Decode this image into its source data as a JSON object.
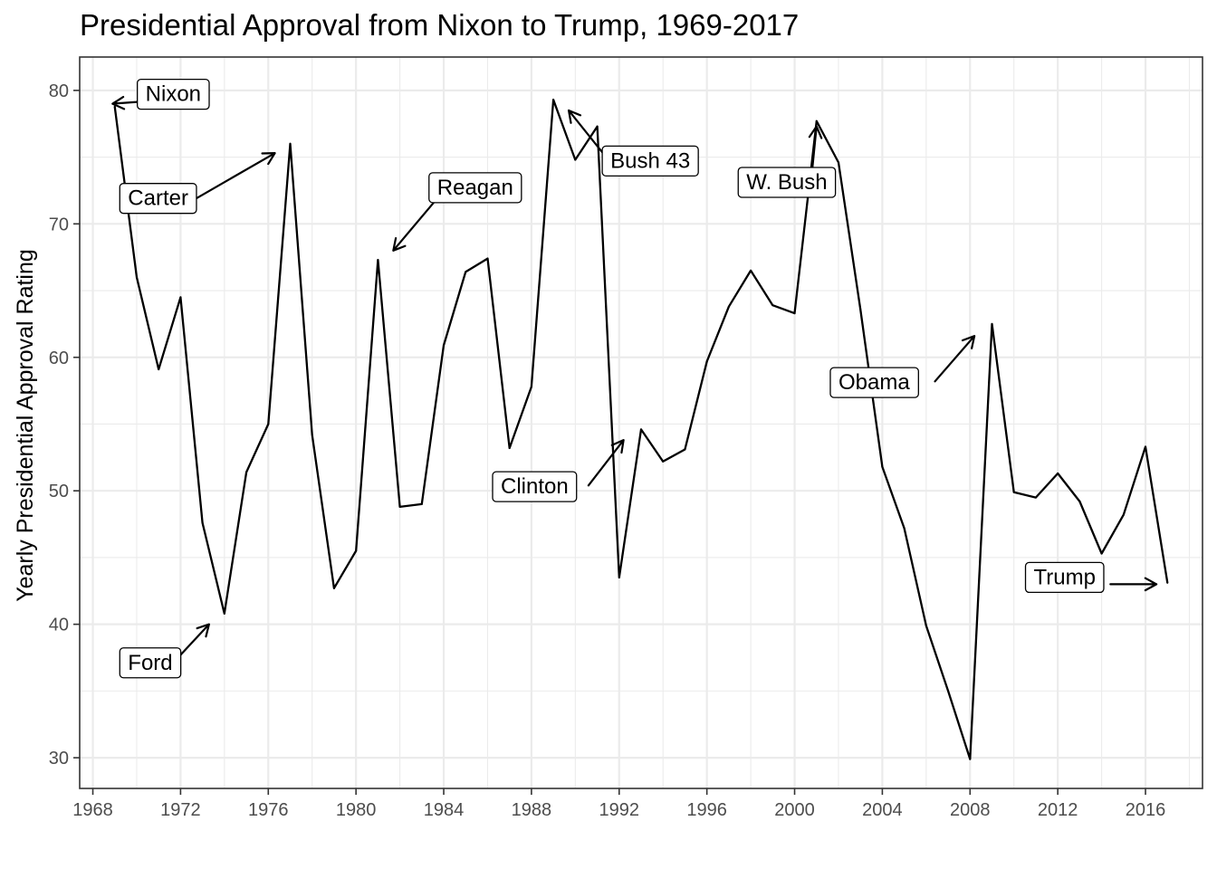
{
  "chart_data": {
    "type": "line",
    "title": "Presidential Approval from Nixon to Trump, 1969-2017",
    "xlabel": "",
    "ylabel": "Yearly Presidential Approval Rating",
    "xlim": [
      1967.4,
      2018.6
    ],
    "ylim": [
      27.7,
      82.5
    ],
    "x_ticks": [
      1968,
      1972,
      1976,
      1980,
      1984,
      1988,
      1992,
      1996,
      2000,
      2004,
      2008,
      2012,
      2016
    ],
    "y_ticks": [
      30,
      40,
      50,
      60,
      70,
      80
    ],
    "grid": true,
    "legend": "none",
    "x": [
      1969,
      1970,
      1971,
      1972,
      1973,
      1974,
      1975,
      1976,
      1977,
      1978,
      1979,
      1980,
      1981,
      1982,
      1983,
      1984,
      1985,
      1986,
      1987,
      1988,
      1989,
      1990,
      1991,
      1992,
      1993,
      1994,
      1995,
      1996,
      1997,
      1998,
      1999,
      2000,
      2001,
      2002,
      2003,
      2004,
      2005,
      2006,
      2007,
      2008,
      2009,
      2010,
      2011,
      2012,
      2013,
      2014,
      2015,
      2016,
      2017
    ],
    "y": [
      78.8,
      66.0,
      59.1,
      64.5,
      47.6,
      40.8,
      51.4,
      55.0,
      76.0,
      54.2,
      42.7,
      45.5,
      67.3,
      48.8,
      49.0,
      60.9,
      66.4,
      67.4,
      53.2,
      57.8,
      79.3,
      74.8,
      77.3,
      43.5,
      54.6,
      52.2,
      53.1,
      59.7,
      63.8,
      66.5,
      63.9,
      63.3,
      77.7,
      74.6,
      63.6,
      51.8,
      47.2,
      39.9,
      35.0,
      29.9,
      62.5,
      49.9,
      49.5,
      51.3,
      49.2,
      45.3,
      48.2,
      53.3,
      43.1
    ],
    "annotations": [
      {
        "label": "Nixon",
        "text_x": 1970.4,
        "text_y": 79.2,
        "arrow_from_x": 1970.6,
        "arrow_from_y": 79.2,
        "arrow_to_x": 1968.9,
        "arrow_to_y": 79.0
      },
      {
        "label": "Ford",
        "text_x": 1969.6,
        "text_y": 36.6,
        "arrow_from_x": 1971.6,
        "arrow_from_y": 37.0,
        "arrow_to_x": 1973.3,
        "arrow_to_y": 40.0
      },
      {
        "label": "Carter",
        "text_x": 1969.6,
        "text_y": 71.4,
        "arrow_from_x": 1972.6,
        "arrow_from_y": 71.8,
        "arrow_to_x": 1976.3,
        "arrow_to_y": 75.3
      },
      {
        "label": "Reagan",
        "text_x": 1983.7,
        "text_y": 72.2,
        "arrow_from_x": 1983.7,
        "arrow_from_y": 71.9,
        "arrow_to_x": 1981.7,
        "arrow_to_y": 68.0
      },
      {
        "label": "Bush 43",
        "text_x": 1991.6,
        "text_y": 74.2,
        "arrow_from_x": 1991.6,
        "arrow_from_y": 74.6,
        "arrow_to_x": 1989.7,
        "arrow_to_y": 78.5
      },
      {
        "label": "Clinton",
        "text_x": 1986.6,
        "text_y": 49.8,
        "arrow_from_x": 1990.6,
        "arrow_from_y": 50.4,
        "arrow_to_x": 1992.2,
        "arrow_to_y": 53.8
      },
      {
        "label": "W. Bush",
        "text_x": 1997.8,
        "text_y": 72.6,
        "arrow_from_x": 2000.8,
        "arrow_from_y": 74.0,
        "arrow_to_x": 2001.0,
        "arrow_to_y": 77.3
      },
      {
        "label": "Obama",
        "text_x": 2002.0,
        "text_y": 57.6,
        "arrow_from_x": 2006.4,
        "arrow_from_y": 58.2,
        "arrow_to_x": 2008.2,
        "arrow_to_y": 61.6
      },
      {
        "label": "Trump",
        "text_x": 2010.9,
        "text_y": 43.0,
        "arrow_from_x": 2014.4,
        "arrow_from_y": 43.0,
        "arrow_to_x": 2016.5,
        "arrow_to_y": 43.0
      }
    ]
  }
}
